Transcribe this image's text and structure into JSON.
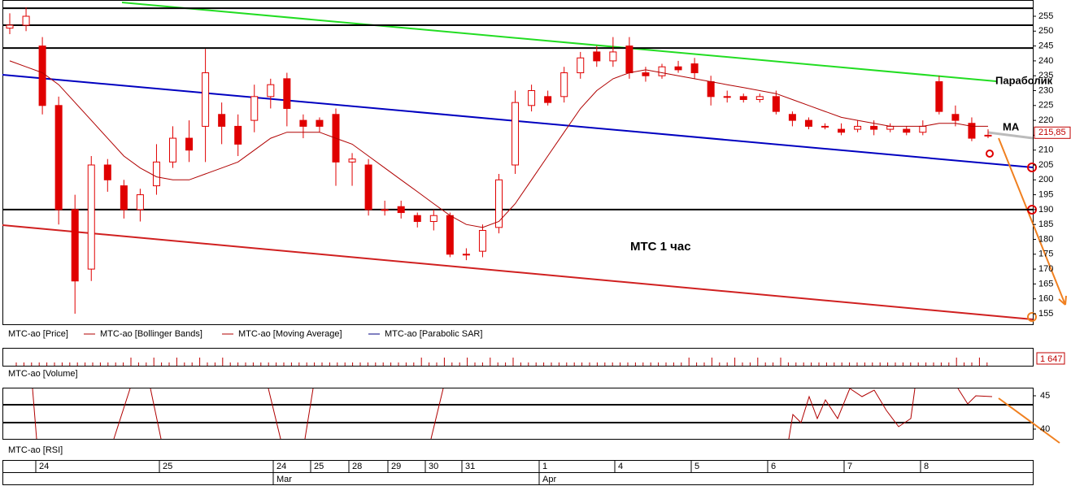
{
  "chart_data": {
    "type": "candlestick",
    "annotation": "МТС   1 час",
    "labels": {
      "sar": "Параболик",
      "ma": "MA"
    },
    "color": "#e00000",
    "open": [
      251,
      252,
      245,
      225,
      190,
      170,
      205,
      198,
      190,
      198,
      206,
      214,
      218,
      222,
      218,
      220,
      228,
      234,
      220,
      220,
      222,
      206,
      205,
      190,
      191,
      188,
      186,
      188,
      175,
      176,
      184,
      205,
      225,
      228,
      228,
      236,
      243,
      240,
      245,
      236,
      235,
      238,
      239,
      233,
      228,
      228,
      227,
      228,
      222,
      220,
      218,
      217,
      217,
      218,
      217,
      217,
      216,
      233,
      222,
      219,
      215
    ],
    "high": [
      256,
      258,
      248,
      228,
      195,
      208,
      207,
      200,
      197,
      212,
      218,
      220,
      244,
      226,
      222,
      232,
      234,
      236,
      222,
      221,
      224,
      209,
      207,
      193,
      193,
      189,
      190,
      189,
      177,
      185,
      202,
      230,
      232,
      230,
      238,
      243,
      245,
      248,
      248,
      238,
      239,
      240,
      241,
      235,
      230,
      229,
      229,
      230,
      223,
      221,
      219,
      219,
      220,
      220,
      219,
      218,
      220,
      235,
      225,
      221,
      217
    ],
    "low": [
      249,
      250,
      222,
      185,
      155,
      166,
      196,
      187,
      186,
      195,
      204,
      206,
      206,
      212,
      208,
      216,
      224,
      218,
      214,
      216,
      198,
      198,
      188,
      188,
      187,
      184,
      183,
      174,
      173,
      174,
      182,
      202,
      223,
      225,
      226,
      234,
      238,
      238,
      234,
      233,
      234,
      236,
      234,
      225,
      226,
      226,
      226,
      222,
      218,
      217,
      217,
      215,
      216,
      215,
      216,
      215,
      215,
      222,
      218,
      213,
      214
    ],
    "close": [
      252,
      255,
      225,
      190,
      166,
      205,
      200,
      190,
      195,
      206,
      214,
      210,
      236,
      218,
      212,
      228,
      232,
      224,
      218,
      218,
      206,
      207,
      190,
      190,
      189,
      186,
      188,
      175,
      175,
      183,
      200,
      226,
      230,
      226,
      236,
      241,
      240,
      243,
      236,
      235,
      238,
      237,
      236,
      228,
      228,
      227,
      228,
      223,
      220,
      218,
      218,
      216,
      218,
      217,
      218,
      216,
      218,
      223,
      220,
      214,
      215
    ],
    "ma": {
      "color": "#b00000",
      "values": [
        240,
        238,
        236,
        232,
        226,
        220,
        214,
        208,
        204,
        201,
        200,
        200,
        202,
        204,
        206,
        210,
        214,
        216,
        216,
        216,
        214,
        212,
        208,
        204,
        200,
        196,
        192,
        188,
        185,
        184,
        186,
        192,
        200,
        208,
        216,
        224,
        230,
        234,
        236,
        237,
        236,
        235,
        234,
        233,
        232,
        231,
        230,
        229,
        227,
        225,
        223,
        221,
        220,
        219,
        218,
        218,
        218,
        219,
        219,
        218,
        218
      ]
    },
    "levels": [
      257.7,
      252,
      244.3,
      190
    ],
    "ylim": [
      155,
      255
    ],
    "yticks": [
      155,
      160,
      165,
      170,
      175,
      180,
      185,
      190,
      195,
      200,
      205,
      210,
      215,
      220,
      225,
      230,
      235,
      240,
      245,
      250,
      255
    ],
    "last_price": {
      "value": 215.85,
      "label": "215,85"
    },
    "legend": [
      "MTC-ao [Price]",
      "MTC-ao [Bollinger Bands]",
      "MTC-ao [Moving Average]",
      "MTC-ao [Parabolic SAR]"
    ],
    "volume": {
      "title": "MTC-ao [Volume]",
      "last": "1 647"
    },
    "rsi": {
      "title": "MTC-ao [RSI]",
      "yticks": [
        45,
        40
      ]
    },
    "dates": [
      "24",
      "25",
      "24",
      "25",
      "28",
      "29",
      "30",
      "31",
      "1",
      "4",
      "5",
      "6",
      "7",
      "8"
    ],
    "months": [
      "Mar",
      "Apr"
    ]
  }
}
